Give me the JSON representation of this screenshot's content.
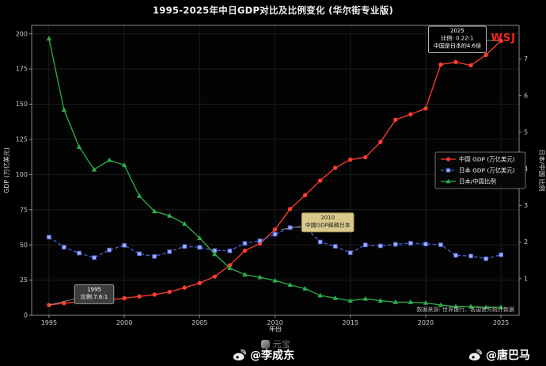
{
  "title": "1995-2025年中日GDP对比及比例变化 (华尔街专业版)",
  "wsj_label": "WSJ",
  "source_note": "数据来源: 世界银行、各国官方统计数据",
  "footer": {
    "watermark": "元宝",
    "left_handle": "@李成东",
    "right_handle": "@唐巴马"
  },
  "chart_data": {
    "type": "line",
    "title": "1995-2025年中日GDP对比及比例变化 (华尔街专业版)",
    "xlabel": "年份",
    "ylabel_left": "GDP (万亿美元)",
    "ylabel_right": "日本/中国 比例",
    "xlim": [
      1993.85,
      2026.2
    ],
    "ylim_left": [
      0,
      206
    ],
    "ylim_right": [
      0,
      7.92
    ],
    "xticks": [
      1995,
      2000,
      2005,
      2010,
      2015,
      2020,
      2025
    ],
    "yticks_left": [
      0,
      25,
      50,
      75,
      100,
      125,
      150,
      175,
      200
    ],
    "yticks_right": [
      1,
      2,
      3,
      4,
      5,
      6,
      7
    ],
    "grid": true,
    "legend_position": "center-right",
    "x": [
      1995,
      1996,
      1997,
      1998,
      1999,
      2000,
      2001,
      2002,
      2003,
      2004,
      2005,
      2006,
      2007,
      2008,
      2009,
      2010,
      2011,
      2012,
      2013,
      2014,
      2015,
      2016,
      2017,
      2018,
      2019,
      2020,
      2021,
      2022,
      2023,
      2024,
      2025
    ],
    "series": [
      {
        "id": "china-gdp",
        "name": "中国 GDP (万亿美元)",
        "axis": "left",
        "color": "#ff3d2e",
        "marker": "circle",
        "marker_fill": "#ff3d2e",
        "dash": false,
        "values": [
          7.3,
          8.6,
          9.6,
          10.3,
          10.9,
          12.1,
          13.4,
          14.7,
          16.6,
          19.6,
          22.9,
          27.5,
          35.5,
          45.9,
          51.0,
          60.9,
          75.5,
          85.3,
          95.7,
          104.8,
          110.6,
          112.3,
          123.1,
          138.9,
          142.8,
          146.9,
          178.2,
          179.9,
          177.6,
          184.9,
          195.0
        ]
      },
      {
        "id": "japan-gdp",
        "name": "日本 GDP (万亿美元)",
        "axis": "left",
        "color": "#4a5fd0",
        "marker": "square",
        "marker_fill": "#9fb0ff",
        "dash": true,
        "values": [
          55.5,
          48.4,
          44.2,
          41.0,
          46.4,
          49.7,
          43.7,
          41.8,
          45.2,
          48.9,
          48.3,
          46.0,
          45.8,
          51.1,
          52.9,
          57.6,
          62.3,
          62.7,
          52.1,
          49.0,
          44.4,
          50.0,
          49.3,
          50.4,
          51.2,
          50.6,
          50.1,
          42.6,
          42.1,
          40.2,
          43.0
        ]
      },
      {
        "id": "japan-china-ratio",
        "name": "日本/中国比例",
        "axis": "right",
        "color": "#2eae4a",
        "marker": "triangle",
        "marker_fill": "#2eae4a",
        "dash": false,
        "values": [
          7.56,
          5.61,
          4.6,
          3.98,
          4.24,
          4.1,
          3.26,
          2.84,
          2.72,
          2.5,
          2.11,
          1.67,
          1.29,
          1.11,
          1.04,
          0.95,
          0.83,
          0.73,
          0.54,
          0.47,
          0.4,
          0.45,
          0.4,
          0.36,
          0.36,
          0.34,
          0.28,
          0.24,
          0.24,
          0.22,
          0.22
        ]
      }
    ],
    "annotations": [
      {
        "id": "ratio-1995",
        "lines": [
          "1995",
          "比例:7.6:1"
        ],
        "box_x": 1998.0,
        "box_y": 15,
        "target_x": 1995,
        "target_y": 7.3,
        "bg": "#3c3c3c",
        "fg": "#ffffff",
        "border": "#aaaaaa"
      },
      {
        "id": "crossover-2010",
        "lines": [
          "2010",
          "中国GDP超越日本"
        ],
        "box_x": 2013.5,
        "box_y": 66,
        "target_x": 2010.4,
        "target_y": 61,
        "bg": "#d9c98c",
        "fg": "#1a1a1a",
        "border": "#9a8c55"
      },
      {
        "id": "ratio-2025",
        "lines": [
          "2025",
          "比例: 0.22:1",
          "中国是日本的4.6倍"
        ],
        "box_x": 2022.1,
        "box_y": 196,
        "target_x": 2025,
        "target_y": 195,
        "bg": "#000000",
        "fg": "#ffffff",
        "border": "#cccccc"
      }
    ]
  }
}
